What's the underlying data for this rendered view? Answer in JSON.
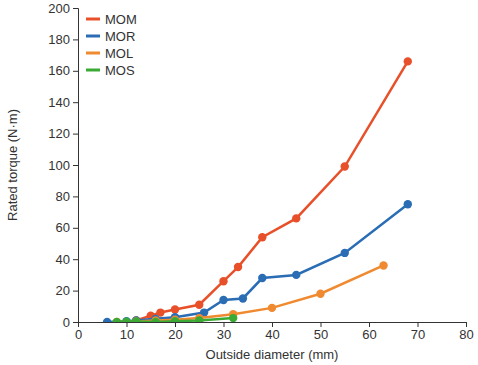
{
  "chart_data": {
    "type": "line",
    "x_label": "Outside diameter (mm)",
    "y_label": "Rated torque (N·m)",
    "xlim": [
      0,
      80
    ],
    "xticks": [
      0,
      10,
      20,
      30,
      40,
      50,
      60,
      70,
      80
    ],
    "ylim": [
      0,
      200
    ],
    "yticks": [
      0,
      20,
      40,
      60,
      80,
      100,
      120,
      140,
      160,
      180,
      200
    ],
    "grid": false,
    "legend": "upper left",
    "marker": "circle",
    "line_style": "solid",
    "series": [
      {
        "name": "MOM",
        "color": "#e8502a",
        "x": [
          12,
          15,
          17,
          20,
          25,
          30,
          33,
          38,
          45,
          55,
          68
        ],
        "values": [
          1,
          4,
          6,
          8,
          11,
          26,
          35,
          54,
          66,
          99,
          166
        ]
      },
      {
        "name": "MOR",
        "color": "#2a6db5",
        "x": [
          6,
          10,
          12,
          16,
          20,
          26,
          30,
          34,
          38,
          45,
          55,
          68
        ],
        "values": [
          0,
          0.5,
          1,
          2,
          3,
          6,
          14,
          15,
          28,
          30,
          44,
          75
        ]
      },
      {
        "name": "MOL",
        "color": "#f08a30",
        "x": [
          8,
          12,
          16,
          20,
          25,
          32,
          40,
          50,
          63
        ],
        "values": [
          0,
          0.3,
          1,
          1.5,
          2.5,
          5,
          9,
          18,
          36
        ]
      },
      {
        "name": "MOS",
        "color": "#3aaa35",
        "x": [
          8,
          10,
          12,
          16,
          20,
          25,
          32
        ],
        "values": [
          0,
          0.2,
          0.3,
          0,
          0.5,
          1,
          2.5
        ]
      }
    ]
  }
}
